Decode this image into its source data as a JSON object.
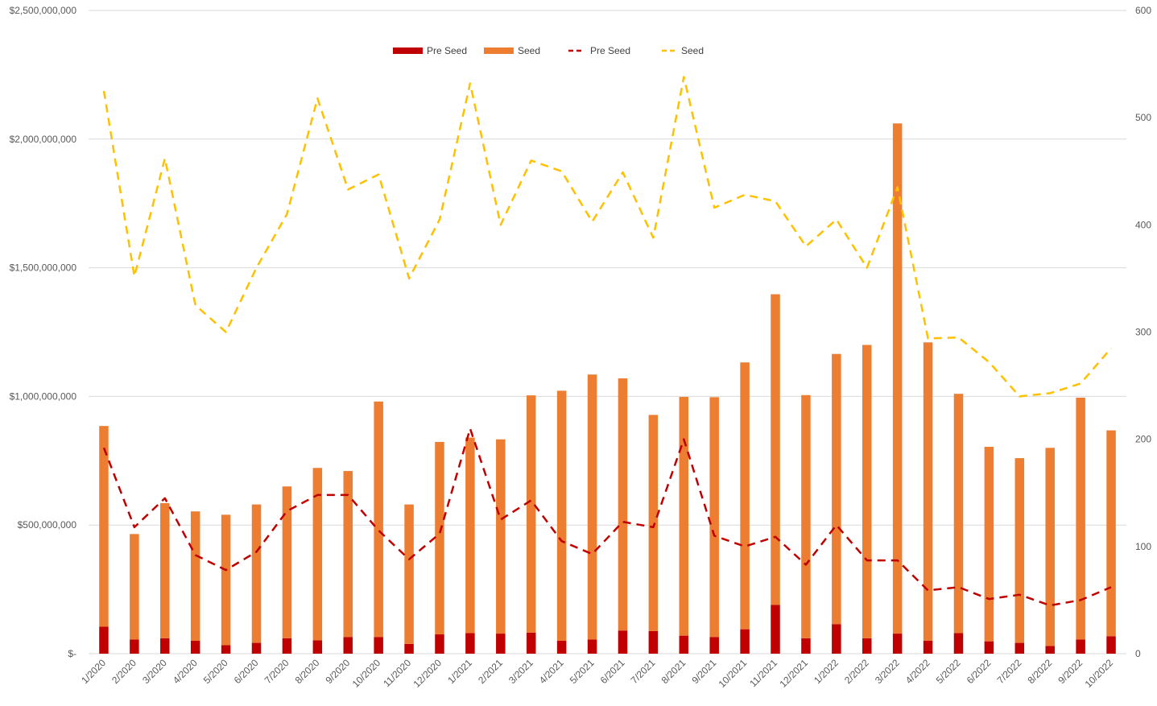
{
  "chart_data": {
    "type": "bar",
    "categories": [
      "1/2020",
      "2/2020",
      "3/2020",
      "4/2020",
      "5/2020",
      "6/2020",
      "7/2020",
      "8/2020",
      "9/2020",
      "10/2020",
      "11/2020",
      "12/2020",
      "1/2021",
      "2/2021",
      "3/2021",
      "4/2021",
      "5/2021",
      "6/2021",
      "7/2021",
      "8/2021",
      "9/2021",
      "10/2021",
      "11/2021",
      "12/2021",
      "1/2022",
      "2/2022",
      "3/2022",
      "4/2022",
      "5/2022",
      "6/2022",
      "7/2022",
      "8/2022",
      "9/2022",
      "10/2022"
    ],
    "bar_series": [
      {
        "name": "Pre Seed",
        "color": "#C00000",
        "values": [
          105000000,
          55000000,
          60000000,
          50000000,
          33000000,
          42000000,
          60000000,
          52000000,
          65000000,
          65000000,
          38000000,
          75000000,
          80000000,
          78000000,
          82000000,
          50000000,
          55000000,
          90000000,
          88000000,
          70000000,
          65000000,
          95000000,
          190000000,
          60000000,
          115000000,
          60000000,
          78000000,
          50000000,
          80000000,
          48000000,
          42000000,
          30000000,
          55000000,
          68000000
        ]
      },
      {
        "name": "Seed",
        "color": "#ED7D31",
        "values": [
          780000000,
          410000000,
          525000000,
          503000000,
          507000000,
          538000000,
          590000000,
          670000000,
          645000000,
          915000000,
          542000000,
          748000000,
          760000000,
          755000000,
          922000000,
          972000000,
          1030000000,
          980000000,
          840000000,
          928000000,
          932000000,
          1037000000,
          1207000000,
          945000000,
          1050000000,
          1140000000,
          1983000000,
          1160000000,
          930000000,
          756000000,
          718000000,
          770000000,
          940000000,
          800000000
        ]
      }
    ],
    "line_series": [
      {
        "name": "Pre Seed",
        "color": "#C00000",
        "axis": "right",
        "values": [
          192,
          118,
          145,
          92,
          78,
          95,
          133,
          148,
          148,
          115,
          88,
          112,
          210,
          125,
          143,
          105,
          93,
          123,
          118,
          200,
          110,
          100,
          109,
          83,
          120,
          87,
          87,
          59,
          62,
          51,
          55,
          45,
          50,
          62
        ]
      },
      {
        "name": "Seed",
        "color": "#FFC000",
        "axis": "right",
        "values": [
          525,
          352,
          462,
          325,
          300,
          360,
          410,
          518,
          433,
          447,
          350,
          405,
          532,
          400,
          460,
          450,
          403,
          449,
          388,
          538,
          416,
          428,
          422,
          380,
          405,
          360,
          435,
          294,
          295,
          272,
          240,
          243,
          252,
          285
        ]
      }
    ],
    "y_left": {
      "min": 0,
      "max": 2500000000,
      "step": 500000000,
      "tick_labels": [
        "$-",
        "$500,000,000",
        "$1,000,000,000",
        "$1,500,000,000",
        "$2,000,000,000",
        "$2,500,000,000"
      ]
    },
    "y_right": {
      "min": 0,
      "max": 600,
      "step": 100,
      "tick_labels": [
        "0",
        "100",
        "200",
        "300",
        "400",
        "500",
        "600"
      ]
    },
    "legend": [
      {
        "label": "Pre Seed",
        "kind": "bar",
        "color": "#C00000"
      },
      {
        "label": "Seed",
        "kind": "bar",
        "color": "#ED7D31"
      },
      {
        "label": "Pre Seed",
        "kind": "line",
        "color": "#C00000"
      },
      {
        "label": "Seed",
        "kind": "line",
        "color": "#FFC000"
      }
    ],
    "legend_position": "top-center",
    "grid": true,
    "title": "",
    "xlabel": "",
    "ylabel": ""
  }
}
